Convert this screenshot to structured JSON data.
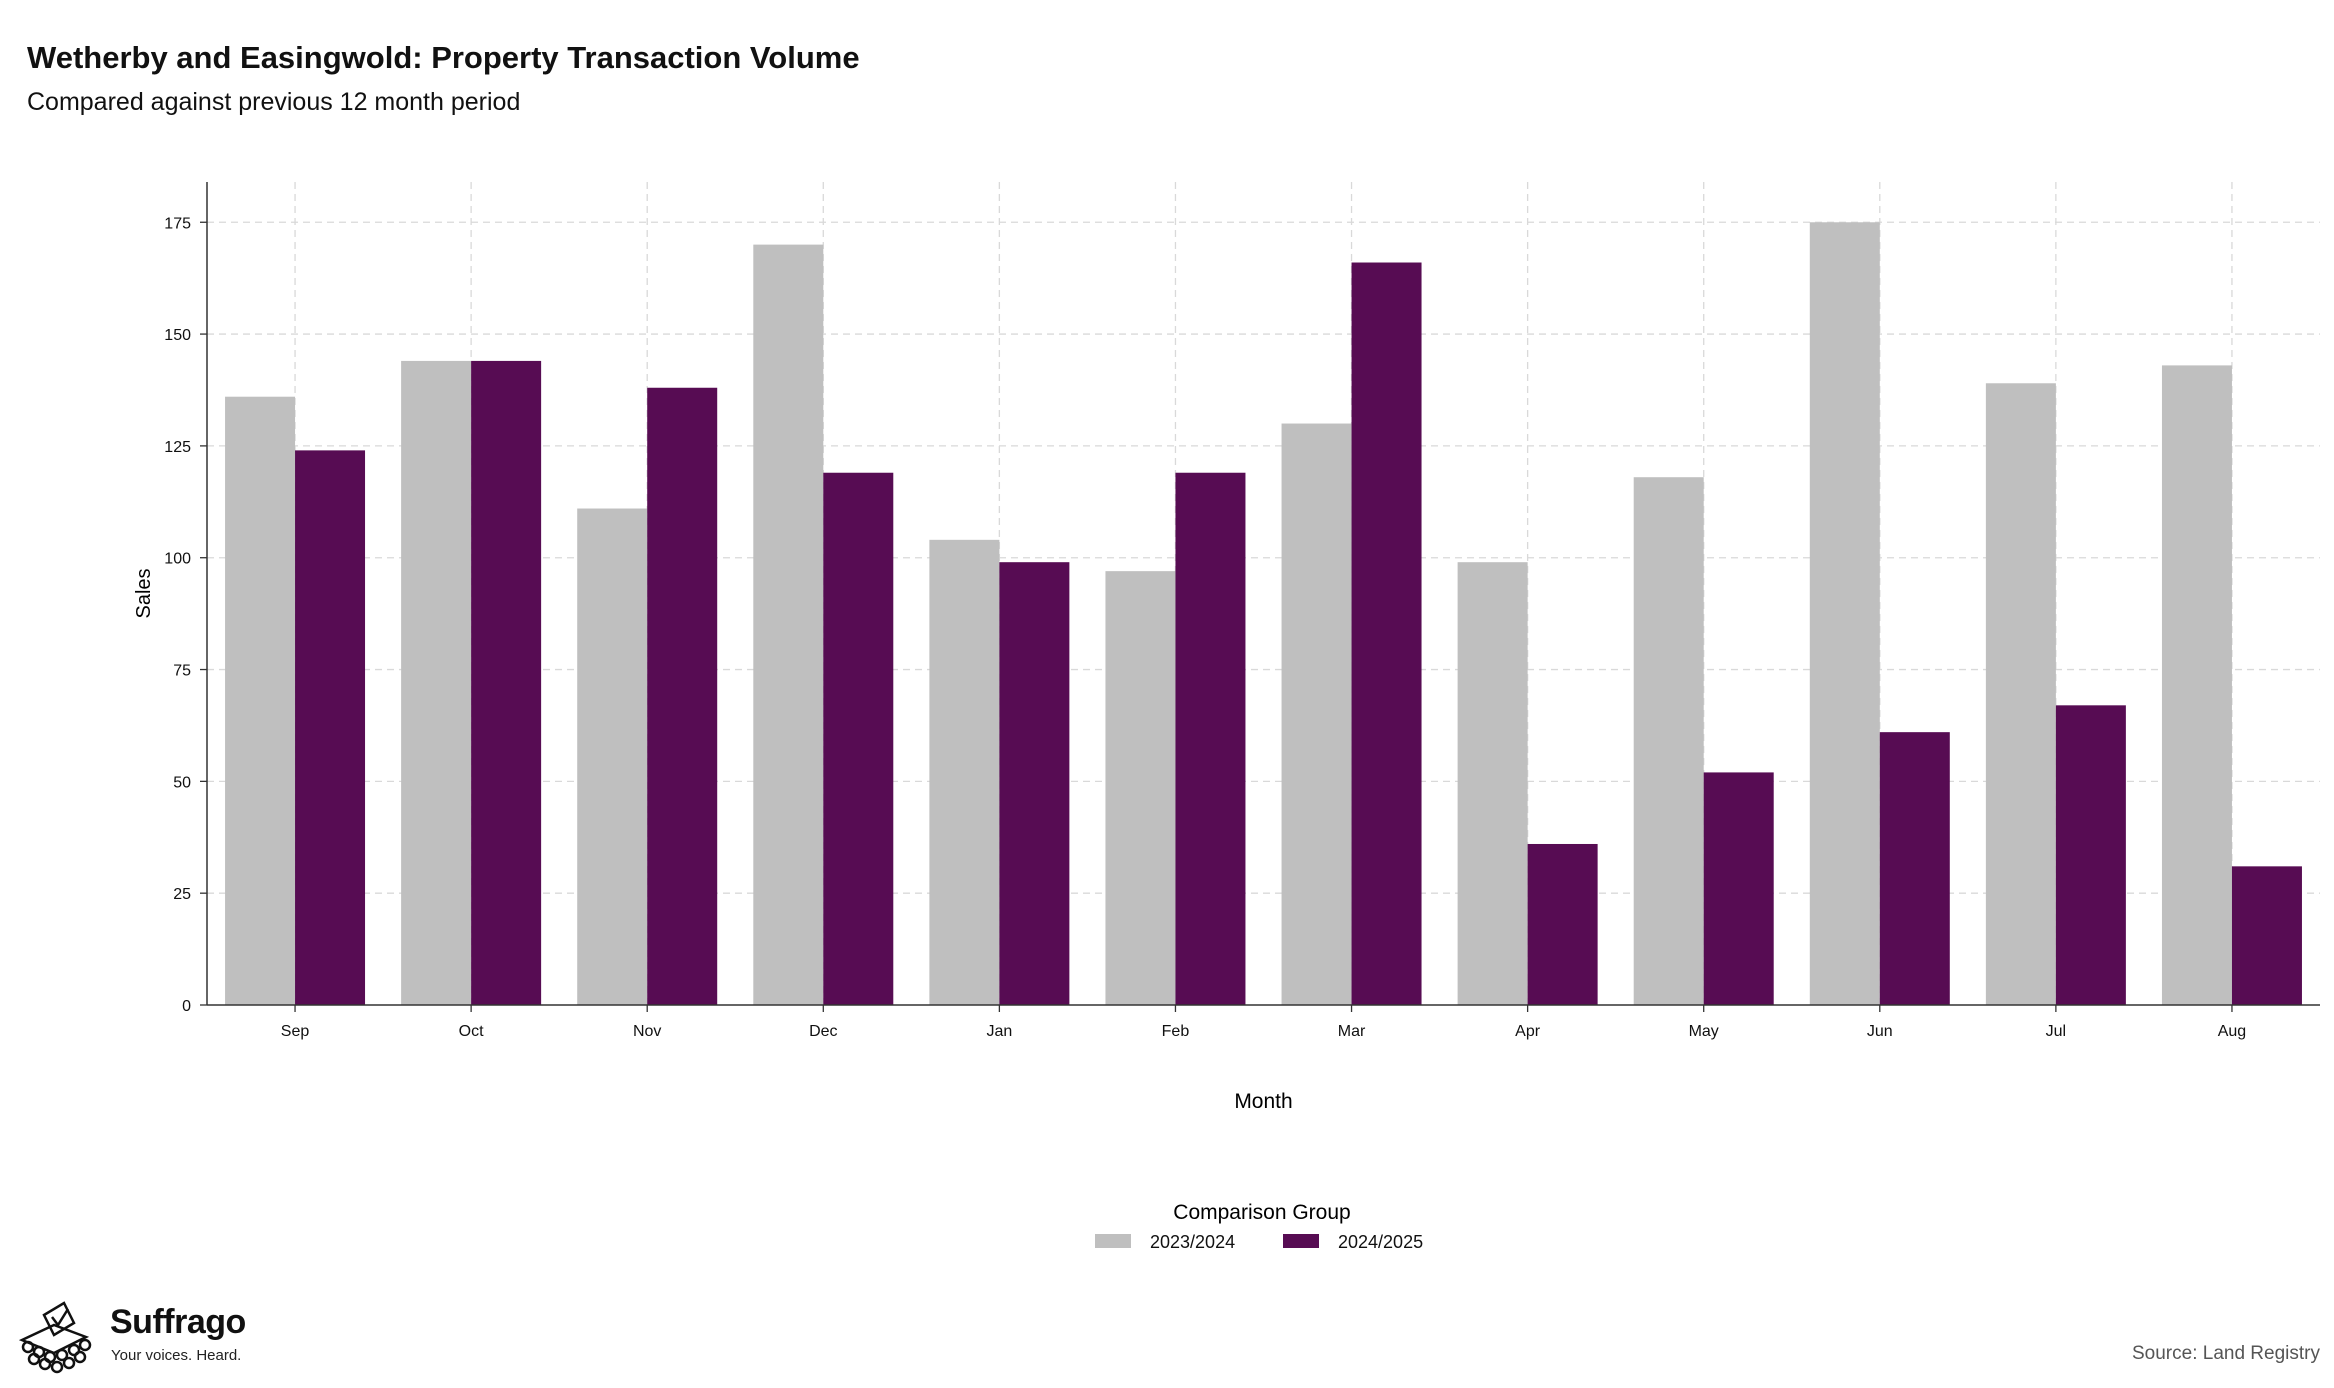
{
  "title": "Wetherby and Easingwold: Property Transaction Volume",
  "subtitle": "Compared against previous 12 month period",
  "source": "Source: Land Registry",
  "brand": {
    "name": "Suffrago",
    "tagline": "Your voices. Heard."
  },
  "chart_data": {
    "type": "bar",
    "categories": [
      "Sep",
      "Oct",
      "Nov",
      "Dec",
      "Jan",
      "Feb",
      "Mar",
      "Apr",
      "May",
      "Jun",
      "Jul",
      "Aug"
    ],
    "series": [
      {
        "name": "2023/2024",
        "color": "#bfbfbf",
        "values": [
          136,
          144,
          111,
          170,
          104,
          97,
          130,
          99,
          118,
          175,
          139,
          143
        ]
      },
      {
        "name": "2024/2025",
        "color": "#570c53",
        "values": [
          124,
          144,
          138,
          119,
          99,
          119,
          166,
          36,
          52,
          61,
          67,
          31
        ]
      }
    ],
    "xlabel": "Month",
    "ylabel": "Sales",
    "ylim": [
      0,
      184
    ],
    "yticks": [
      0,
      25,
      50,
      75,
      100,
      125,
      150,
      175
    ],
    "grid": true,
    "legend_title": "Comparison Group",
    "legend_position": "bottom"
  }
}
